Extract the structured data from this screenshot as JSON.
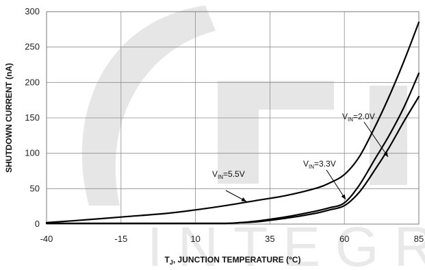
{
  "watermark": {
    "text": "INTEGR",
    "logo_letters": "GI"
  },
  "chart_data": {
    "type": "line",
    "title": "",
    "xlabel_main": "T",
    "xlabel_sub": "J",
    "xlabel_rest": ", JUNCTION TEMPERATURE (°C)",
    "ylabel": "SHUTDOWN CURRENT (nA)",
    "xlim": [
      -40,
      85
    ],
    "ylim": [
      0,
      300
    ],
    "xticks": [
      -40,
      -15,
      10,
      35,
      60,
      85
    ],
    "yticks": [
      0,
      50,
      100,
      150,
      200,
      250,
      300
    ],
    "grid": true,
    "series": [
      {
        "name": "VIN=5.5V",
        "x": [
          -40,
          -30,
          -15,
          0,
          10,
          20,
          30,
          40,
          50,
          55,
          60,
          65,
          70,
          75,
          80,
          85
        ],
        "y": [
          2,
          5,
          10,
          15,
          20,
          26,
          33,
          40,
          50,
          58,
          70,
          95,
          135,
          180,
          230,
          285
        ]
      },
      {
        "name": "VIN=2.0V",
        "x": [
          -40,
          -20,
          0,
          10,
          20,
          25,
          30,
          40,
          50,
          55,
          60,
          65,
          70,
          75,
          80,
          85
        ],
        "y": [
          1,
          1,
          1,
          1,
          1,
          2,
          4,
          10,
          18,
          23,
          30,
          55,
          90,
          125,
          165,
          213
        ]
      },
      {
        "name": "VIN=3.3V",
        "x": [
          -40,
          -20,
          0,
          10,
          20,
          25,
          30,
          40,
          50,
          55,
          60,
          65,
          70,
          75,
          80,
          85
        ],
        "y": [
          1,
          1,
          1,
          1,
          1,
          2,
          3,
          8,
          15,
          20,
          26,
          45,
          75,
          108,
          145,
          180
        ]
      }
    ],
    "annotations": [
      {
        "main": "V",
        "sub": "IN",
        "rest": "=5.5V"
      },
      {
        "main": "V",
        "sub": "IN",
        "rest": "=2.0V"
      },
      {
        "main": "V",
        "sub": "IN",
        "rest": "=3.3V"
      }
    ]
  }
}
